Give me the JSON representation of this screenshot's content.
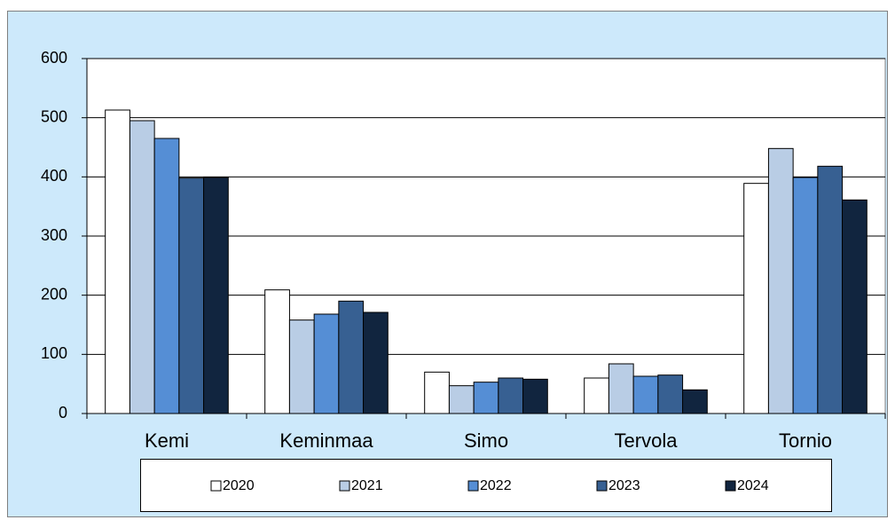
{
  "chart_data": {
    "type": "bar",
    "categories": [
      "Kemi",
      "Keminmaa",
      "Simo",
      "Tervola",
      "Tornio"
    ],
    "series": [
      {
        "name": "2020",
        "color": "#ffffff",
        "values": [
          513,
          209,
          70,
          60,
          389
        ]
      },
      {
        "name": "2021",
        "color": "#b9cde5",
        "values": [
          495,
          158,
          47,
          84,
          448
        ]
      },
      {
        "name": "2022",
        "color": "#558ed5",
        "values": [
          465,
          168,
          53,
          63,
          399
        ]
      },
      {
        "name": "2023",
        "color": "#376092",
        "values": [
          398,
          190,
          60,
          65,
          418
        ]
      },
      {
        "name": "2024",
        "color": "#11253f",
        "values": [
          399,
          171,
          58,
          40,
          361
        ]
      }
    ],
    "ylim": [
      0,
      600
    ],
    "yticks": [
      0,
      100,
      200,
      300,
      400,
      500,
      600
    ],
    "grid": true,
    "legend": "bottom"
  }
}
